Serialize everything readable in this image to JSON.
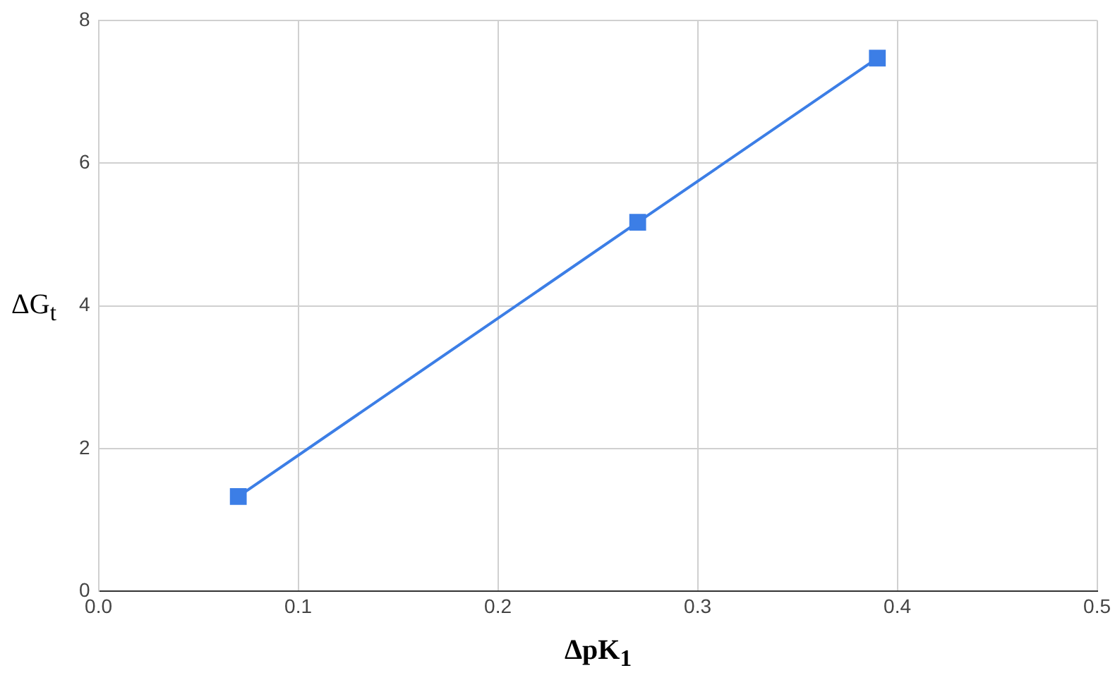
{
  "chart_data": {
    "type": "line",
    "xlabel": "ΔpK$_{1}$",
    "ylabel": "ΔG$_{t}$",
    "x": [
      0.07,
      0.27,
      0.39
    ],
    "series": [
      {
        "color": "#3c7ee6",
        "values": [
          1.33,
          5.17,
          7.47
        ]
      }
    ],
    "xlim": [
      0,
      0.5
    ],
    "xticks": [
      {
        "value": 0,
        "label": "0.0"
      },
      {
        "value": 0.1,
        "label": "0.1"
      },
      {
        "value": 0.2,
        "label": "0.2"
      },
      {
        "value": 0.3,
        "label": "0.3"
      },
      {
        "value": 0.4,
        "label": "0.4"
      },
      {
        "value": 0.5,
        "label": "0.5"
      }
    ],
    "ylim": [
      0,
      8
    ],
    "yticks": [
      0,
      2,
      4,
      6,
      8
    ],
    "grid": true,
    "legend": false,
    "marker": "square",
    "line_style": "solid"
  }
}
